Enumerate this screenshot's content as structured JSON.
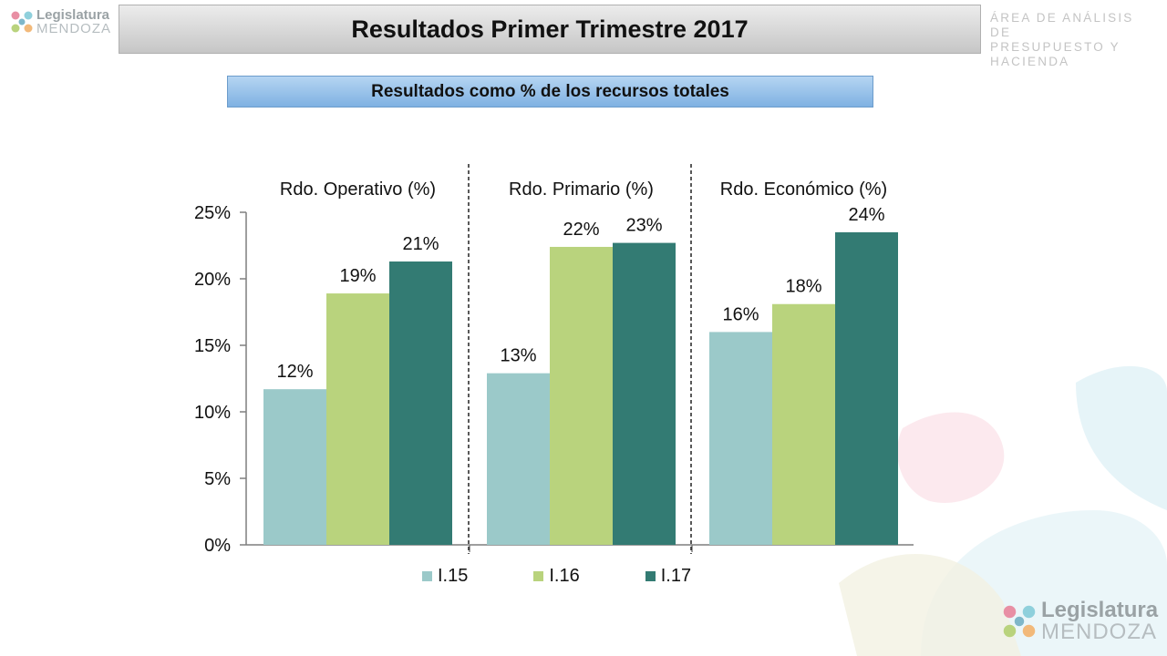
{
  "header": {
    "title": "Resultados Primer Trimestre 2017",
    "area_line1": "ÁREA DE ANÁLISIS DE",
    "area_line2": "PRESUPUESTO Y HACIENDA"
  },
  "logo": {
    "name": "Legislatura",
    "sub": "MENDOZA"
  },
  "subtitle": "Resultados como % de los recursos totales",
  "colors": {
    "I15": "#9bc9c9",
    "I16": "#b9d37d",
    "I17": "#337b73"
  },
  "chart_data": {
    "type": "bar",
    "categories": [
      "Rdo. Operativo (%)",
      "Rdo. Primario (%)",
      "Rdo. Económico (%)"
    ],
    "series": [
      {
        "name": "I.15",
        "values": [
          11.7,
          12.9,
          16.0
        ],
        "labels": [
          "12%",
          "13%",
          "16%"
        ]
      },
      {
        "name": "I.16",
        "values": [
          18.9,
          22.4,
          18.1
        ],
        "labels": [
          "19%",
          "22%",
          "18%"
        ]
      },
      {
        "name": "I.17",
        "values": [
          21.3,
          22.7,
          23.5
        ],
        "labels": [
          "21%",
          "23%",
          "24%"
        ]
      }
    ],
    "y_ticks": [
      "0%",
      "5%",
      "10%",
      "15%",
      "20%",
      "25%"
    ],
    "ylim": [
      0,
      25
    ],
    "legend_position": "bottom",
    "grid": false
  }
}
